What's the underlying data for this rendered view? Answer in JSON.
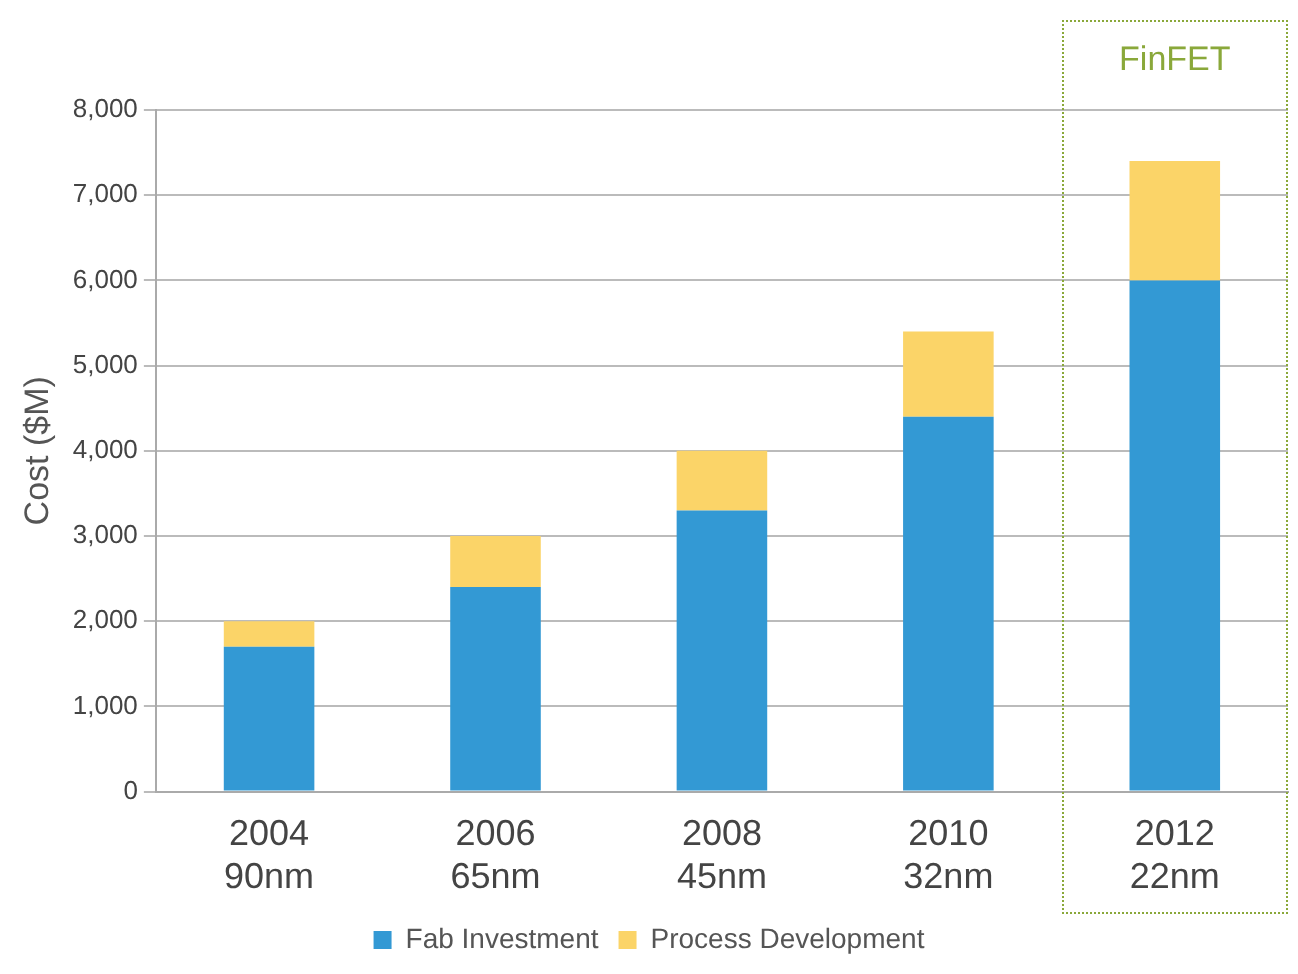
{
  "chart_data": {
    "type": "bar",
    "stacked": true,
    "ylabel": "Cost ($M)",
    "categories": [
      "2004\n90nm",
      "2006\n65nm",
      "2008\n45nm",
      "2010\n32nm",
      "2012\n22nm"
    ],
    "series": [
      {
        "name": "Fab Investment",
        "color": "#3399d4",
        "values": [
          1700,
          2400,
          3300,
          4400,
          6000
        ]
      },
      {
        "name": "Process Development",
        "color": "#fbd468",
        "values": [
          300,
          600,
          700,
          1000,
          1400
        ]
      }
    ],
    "ylim": [
      0,
      8000
    ],
    "yticks": [
      0,
      {
        "value": 1000,
        "label": "1,000"
      },
      {
        "value": 2000,
        "label": "2,000"
      },
      {
        "value": 3000,
        "label": "3,000"
      },
      {
        "value": 4000,
        "label": "4,000"
      },
      {
        "value": 5000,
        "label": "5,000"
      },
      {
        "value": 6000,
        "label": "6,000"
      },
      {
        "value": 7000,
        "label": "7,000"
      },
      {
        "value": 8000,
        "label": "8,000"
      }
    ],
    "grid": "y",
    "legend": "bottom",
    "annotations": [
      "FinFET"
    ]
  }
}
